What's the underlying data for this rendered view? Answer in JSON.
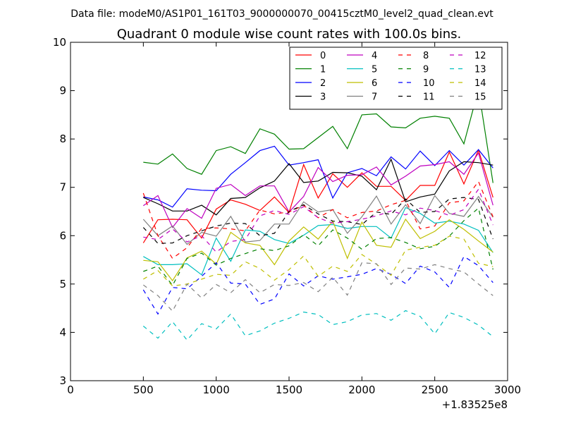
{
  "figure": {
    "suptitle": "Data file: modeM0/AS1P01_161T03_9000000070_00415cztM0_level2_quad_clean.evt",
    "offset_label": "+1.83525e8"
  },
  "chart_data": {
    "type": "line",
    "title": "Quadrant 0 module wise count rates with 100.0s bins.",
    "xlabel": "",
    "ylabel": "",
    "xlim": [
      0,
      3000
    ],
    "ylim": [
      3,
      10
    ],
    "xticks": [
      0,
      500,
      1000,
      1500,
      2000,
      2500,
      3000
    ],
    "yticks": [
      3,
      4,
      5,
      6,
      7,
      8,
      9,
      10
    ],
    "grid": false,
    "legend_position": "top-right",
    "x": [
      500,
      600,
      700,
      800,
      900,
      1000,
      1100,
      1200,
      1300,
      1400,
      1500,
      1600,
      1700,
      1800,
      1900,
      2000,
      2100,
      2200,
      2300,
      2400,
      2500,
      2600,
      2700,
      2800,
      2900
    ],
    "series": [
      {
        "name": "0",
        "color": "#ff0000",
        "dash": "solid",
        "values": [
          5.85,
          6.33,
          6.34,
          6.33,
          5.95,
          6.55,
          6.74,
          6.65,
          6.52,
          6.8,
          6.48,
          7.47,
          6.78,
          7.28,
          7.0,
          7.3,
          7.02,
          7.02,
          6.73,
          7.04,
          7.04,
          7.73,
          7.07,
          7.77,
          6.79
        ]
      },
      {
        "name": "1",
        "color": "#008000",
        "dash": "solid",
        "values": [
          7.52,
          7.48,
          7.69,
          7.39,
          7.27,
          7.76,
          7.84,
          7.7,
          8.21,
          8.1,
          7.79,
          7.8,
          8.03,
          8.26,
          7.8,
          8.5,
          8.52,
          8.25,
          8.23,
          8.43,
          8.47,
          8.43,
          7.9,
          9.03,
          7.09
        ]
      },
      {
        "name": "2",
        "color": "#0000ff",
        "dash": "solid",
        "values": [
          6.8,
          6.74,
          6.59,
          6.97,
          6.94,
          6.93,
          7.27,
          7.51,
          7.76,
          7.85,
          7.46,
          7.51,
          7.57,
          6.78,
          7.3,
          7.39,
          7.24,
          7.63,
          7.38,
          7.75,
          7.45,
          7.76,
          7.46,
          7.78,
          7.4
        ]
      },
      {
        "name": "3",
        "color": "#000000",
        "dash": "solid",
        "values": [
          6.79,
          6.66,
          6.51,
          6.51,
          6.63,
          6.43,
          6.77,
          6.79,
          6.99,
          7.13,
          7.49,
          7.1,
          7.13,
          7.31,
          7.3,
          7.23,
          6.95,
          7.58,
          6.7,
          6.8,
          6.86,
          7.34,
          7.53,
          7.51,
          7.46
        ]
      },
      {
        "name": "4",
        "color": "#bf00bf",
        "dash": "solid",
        "values": [
          6.62,
          6.83,
          6.17,
          6.56,
          6.36,
          6.98,
          7.06,
          6.83,
          7.03,
          7.03,
          6.49,
          6.81,
          7.41,
          7.12,
          7.25,
          7.26,
          7.42,
          7.05,
          7.23,
          7.44,
          7.47,
          7.53,
          7.27,
          7.71,
          6.63
        ]
      },
      {
        "name": "5",
        "color": "#00bfbf",
        "dash": "solid",
        "values": [
          5.57,
          5.4,
          5.4,
          5.42,
          5.19,
          5.95,
          5.47,
          6.12,
          6.09,
          5.92,
          5.84,
          6.01,
          6.21,
          6.23,
          6.15,
          6.19,
          6.19,
          5.95,
          6.58,
          6.46,
          6.26,
          6.3,
          6.24,
          6.11,
          5.65
        ]
      },
      {
        "name": "6",
        "color": "#bfbf00",
        "dash": "solid",
        "values": [
          5.49,
          5.46,
          5.07,
          5.54,
          5.68,
          5.41,
          6.07,
          5.85,
          5.8,
          5.4,
          5.89,
          6.18,
          5.93,
          6.3,
          5.53,
          6.28,
          5.8,
          5.76,
          6.34,
          5.94,
          6.09,
          6.33,
          6.13,
          5.89,
          5.66
        ]
      },
      {
        "name": "7",
        "color": "#808080",
        "dash": "solid",
        "values": [
          6.34,
          6.0,
          6.2,
          5.82,
          6.07,
          5.99,
          6.4,
          5.87,
          5.9,
          6.24,
          6.24,
          6.7,
          6.49,
          6.54,
          6.05,
          6.39,
          6.82,
          6.24,
          6.64,
          6.25,
          6.83,
          6.46,
          6.4,
          6.81,
          6.38
        ]
      },
      {
        "name": "8",
        "color": "#ff0000",
        "dash": "dashed",
        "values": [
          6.88,
          6.0,
          5.53,
          5.75,
          6.15,
          6.16,
          6.14,
          6.1,
          6.53,
          6.45,
          6.49,
          6.63,
          6.37,
          6.54,
          6.37,
          6.48,
          6.51,
          6.64,
          6.73,
          6.14,
          6.2,
          6.68,
          6.72,
          7.12,
          6.39
        ]
      },
      {
        "name": "9",
        "color": "#008000",
        "dash": "dashed",
        "values": [
          5.26,
          5.37,
          4.97,
          5.53,
          5.64,
          5.39,
          5.53,
          5.63,
          5.73,
          5.69,
          5.79,
          6.02,
          5.79,
          6.12,
          5.95,
          5.72,
          5.94,
          5.96,
          5.86,
          5.73,
          5.78,
          5.99,
          6.31,
          6.57,
          5.3
        ]
      },
      {
        "name": "10",
        "color": "#0000ff",
        "dash": "dashed",
        "values": [
          4.88,
          4.38,
          4.93,
          4.9,
          5.16,
          5.44,
          5.02,
          5.0,
          4.58,
          4.69,
          5.21,
          4.96,
          5.17,
          5.1,
          5.15,
          5.2,
          5.32,
          5.2,
          5.01,
          5.37,
          5.25,
          4.93,
          5.57,
          5.38,
          5.03
        ]
      },
      {
        "name": "11",
        "color": "#000000",
        "dash": "dashed",
        "values": [
          6.17,
          5.84,
          5.85,
          6.0,
          6.1,
          6.2,
          6.26,
          6.25,
          6.0,
          6.05,
          6.5,
          6.64,
          6.45,
          6.3,
          6.29,
          6.23,
          6.49,
          6.44,
          6.76,
          6.48,
          6.5,
          6.76,
          6.79,
          6.75,
          5.93
        ]
      },
      {
        "name": "12",
        "color": "#bf00bf",
        "dash": "dashed",
        "values": [
          5.97,
          5.92,
          6.14,
          5.87,
          6.0,
          5.66,
          5.88,
          5.92,
          6.41,
          6.52,
          6.44,
          6.6,
          6.37,
          6.26,
          6.29,
          6.34,
          6.41,
          6.51,
          6.43,
          6.57,
          6.52,
          6.42,
          6.54,
          6.96,
          6.22
        ]
      },
      {
        "name": "13",
        "color": "#00bfbf",
        "dash": "dashed",
        "values": [
          4.13,
          3.88,
          4.22,
          3.84,
          4.18,
          4.07,
          4.38,
          3.93,
          4.03,
          4.19,
          4.29,
          4.42,
          4.37,
          4.16,
          4.22,
          4.36,
          4.39,
          4.25,
          4.45,
          4.33,
          3.97,
          4.41,
          4.31,
          4.15,
          3.91
        ]
      },
      {
        "name": "14",
        "color": "#bfbf00",
        "dash": "dashed",
        "values": [
          5.1,
          5.28,
          4.96,
          5.0,
          5.1,
          5.2,
          5.18,
          5.46,
          5.32,
          5.08,
          5.3,
          5.58,
          5.16,
          5.37,
          5.26,
          5.61,
          5.41,
          5.18,
          5.7,
          5.76,
          5.8,
          5.99,
          5.93,
          5.43,
          5.36
        ]
      },
      {
        "name": "15",
        "color": "#808080",
        "dash": "dashed",
        "values": [
          4.98,
          4.76,
          4.44,
          5.0,
          4.71,
          4.99,
          4.82,
          5.09,
          4.82,
          4.99,
          4.97,
          5.03,
          4.84,
          5.14,
          4.77,
          5.44,
          5.42,
          4.99,
          5.33,
          5.31,
          5.4,
          5.32,
          5.25,
          5.0,
          4.76
        ]
      }
    ]
  }
}
